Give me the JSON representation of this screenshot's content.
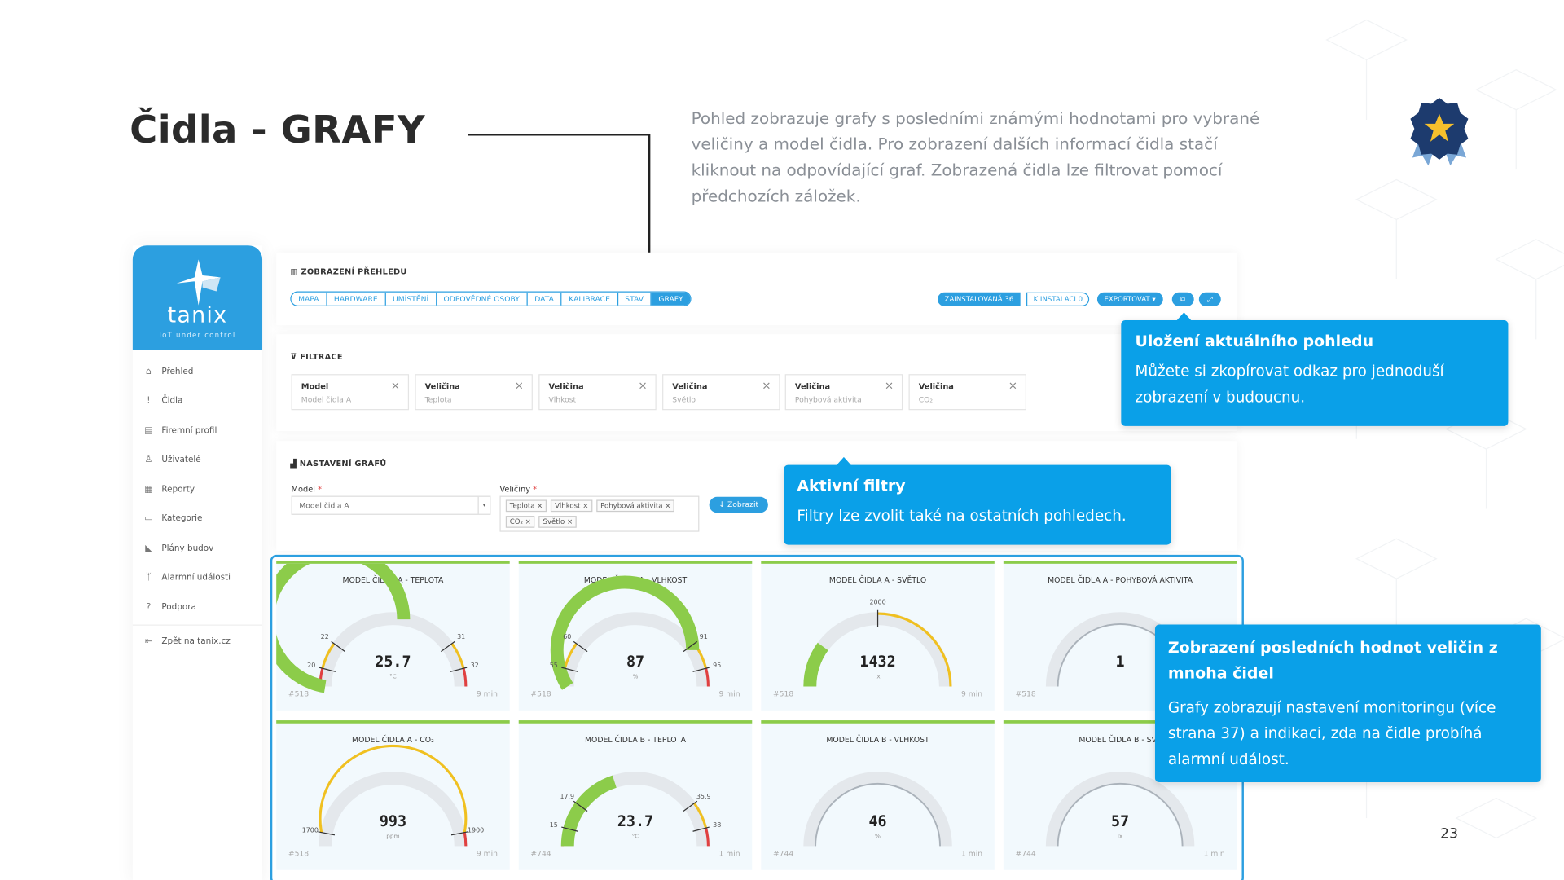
{
  "slide": {
    "title": "Čidla - GRAFY",
    "description": "Pohled zobrazuje grafy s posledními známými hodnotami pro vybrané veličiny a model čidla. Pro zobrazení dalších informací čidla stačí kliknout na odpovídající graf. Zobrazená čidla lze filtrovat pomocí předchozích záložek.",
    "page_number": "23"
  },
  "sidebar": {
    "logo": "tanix",
    "logo_sub": "IoT under control",
    "items": [
      {
        "label": "Přehled",
        "icon": "home-icon",
        "glyph": "⌂"
      },
      {
        "label": "Čidla",
        "icon": "thermometer-icon",
        "glyph": "🌡"
      },
      {
        "label": "Firemní profil",
        "icon": "shop-icon",
        "glyph": "▤"
      },
      {
        "label": "Uživatelé",
        "icon": "users-icon",
        "glyph": "♙"
      },
      {
        "label": "Reporty",
        "icon": "report-icon",
        "glyph": "▦"
      },
      {
        "label": "Kategorie",
        "icon": "folder-icon",
        "glyph": "▭"
      },
      {
        "label": "Plány budov",
        "icon": "floorplan-icon",
        "glyph": "◣"
      },
      {
        "label": "Alarmní události",
        "icon": "antenna-icon",
        "glyph": "ᛉ"
      },
      {
        "label": "Podpora",
        "icon": "help-icon",
        "glyph": "?"
      }
    ],
    "back": {
      "label": "Zpět na tanix.cz",
      "icon": "arrow-left-icon",
      "glyph": "⇤"
    }
  },
  "overview": {
    "label": "ZOBRAZENÍ PŘEHLEDU",
    "tabs": [
      "MAPA",
      "HARDWARE",
      "UMÍSTĚNÍ",
      "ODPOVĚDNÉ OSOBY",
      "DATA",
      "KALIBRACE",
      "STAV",
      "GRAFY"
    ],
    "active_tab": "GRAFY",
    "installed": "ZAINSTALOVANÁ 36",
    "to_install": "K INSTALACI 0",
    "export": "EXPORTOVAT ▾"
  },
  "filters": {
    "label": "FILTRACE",
    "chips": [
      {
        "label": "Model",
        "value": "Model čidla A"
      },
      {
        "label": "Veličina",
        "value": "Teplota"
      },
      {
        "label": "Veličina",
        "value": "Vlhkost"
      },
      {
        "label": "Veličina",
        "value": "Světlo"
      },
      {
        "label": "Veličina",
        "value": "Pohybová aktivita"
      },
      {
        "label": "Veličina",
        "value": "CO₂"
      }
    ]
  },
  "chart_settings": {
    "label": "NASTAVENÍ GRAFŮ",
    "model_label": "Model",
    "model_value": "Model čidla A",
    "quantities_label": "Veličiny",
    "quantities": [
      "Teplota",
      "Vlhkost",
      "Pohybová aktivita",
      "CO₂",
      "Světlo"
    ],
    "show_button": "↓ Zobrazit"
  },
  "gauges": [
    {
      "title": "MODEL ČIDLA A - TEPLOTA",
      "value": "25.7",
      "unit": "°C",
      "id": "#518",
      "time": "9 min",
      "ticks": [
        "20",
        "22",
        "31",
        "32"
      ],
      "fill": 0.55,
      "color": "#8ccc4a",
      "bands": true
    },
    {
      "title": "MODEL ČIDLA A - VLHKOST",
      "value": "87",
      "unit": "%",
      "id": "#518",
      "time": "9 min",
      "ticks": [
        "55",
        "60",
        "91",
        "95"
      ],
      "fill": 0.82,
      "color": "#8ccc4a",
      "bands": true
    },
    {
      "title": "MODEL ČIDLA A - SVĚTLO",
      "value": "1432",
      "unit": "lx",
      "id": "#518",
      "time": "9 min",
      "ticks": [
        "2000"
      ],
      "fill": 0.2,
      "color": "#8ccc4a",
      "bands": "light"
    },
    {
      "title": "MODEL ČIDLA A - POHYBOVÁ AKTIVITA",
      "value": "1",
      "unit": "",
      "id": "#518",
      "time": "",
      "ticks": [],
      "fill": 0,
      "color": "#ccc",
      "bands": false
    },
    {
      "title": "MODEL ČIDLA A - CO₂",
      "value": "993",
      "unit": "ppm",
      "id": "#518",
      "time": "9 min",
      "ticks": [
        "1700",
        "1900"
      ],
      "fill": 0,
      "color": "#8ccc4a",
      "bands": "co2"
    },
    {
      "title": "MODEL ČIDLA B - TEPLOTA",
      "value": "23.7",
      "unit": "°C",
      "id": "#744",
      "time": "1 min",
      "ticks": [
        "15",
        "17.9",
        "35.9",
        "38"
      ],
      "fill": 0.4,
      "color": "#8ccc4a",
      "bands": true
    },
    {
      "title": "MODEL ČIDLA B - VLHKOST",
      "value": "46",
      "unit": "%",
      "id": "#744",
      "time": "1 min",
      "ticks": [],
      "fill": 0,
      "color": "#ccc",
      "bands": false
    },
    {
      "title": "MODEL ČIDLA B - SVĚ",
      "value": "57",
      "unit": "lx",
      "id": "#744",
      "time": "1 min",
      "ticks": [],
      "fill": 0,
      "color": "#ccc",
      "bands": false
    }
  ],
  "callouts": {
    "save": {
      "title": "Uložení aktuálního pohledu",
      "body": "Můžete si zkopírovat odkaz pro jednoduší zobrazení v budoucnu."
    },
    "filters": {
      "title": "Aktivní filtry",
      "body": "Filtry lze zvolit také na ostatních pohledech."
    },
    "values": {
      "title": "Zobrazení posledních hodnot veličin z mnoha čidel",
      "body": "Grafy zobrazují nastavení monitoringu (více strana 37) a indikaci, zda na čidle probíhá alarmní událost."
    }
  },
  "colors": {
    "accent": "#2c9fe0",
    "callout": "#0aa0e8",
    "ok": "#8ccc4a",
    "warn": "#f0c020",
    "alarm": "#e04040"
  }
}
